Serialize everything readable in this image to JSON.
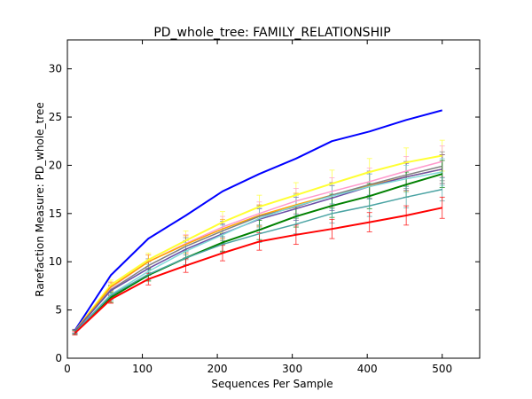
{
  "chart_data": {
    "type": "line",
    "title": "PD_whole_tree: FAMILY_RELATIONSHIP",
    "xlabel": "Sequences Per Sample",
    "ylabel": "Rarefaction Measure: PD_whole_tree",
    "xlim": [
      0,
      550
    ],
    "ylim": [
      0,
      33
    ],
    "xticks": [
      "0",
      "100",
      "200",
      "300",
      "400",
      "500"
    ],
    "yticks": [
      "0",
      "5",
      "10",
      "15",
      "20",
      "25",
      "30"
    ],
    "grid": false,
    "legend": "none",
    "x": [
      10,
      58,
      108,
      158,
      207,
      256,
      305,
      353,
      403,
      452,
      500
    ],
    "series": [
      {
        "color": "#0000ff",
        "values": [
          2.9,
          8.6,
          12.4,
          14.8,
          17.3,
          19.1,
          20.7,
          22.5,
          23.5,
          24.7,
          25.7
        ],
        "errors": null
      },
      {
        "color": "#ffff33",
        "values": [
          2.8,
          7.6,
          10.2,
          12.2,
          14.1,
          15.7,
          16.9,
          18.1,
          19.3,
          20.3,
          21.0
        ],
        "errors": [
          0.2,
          0.5,
          0.7,
          1.0,
          1.1,
          1.2,
          1.3,
          1.4,
          1.4,
          1.5,
          1.6
        ]
      },
      {
        "color": "#ff99cc",
        "values": [
          2.8,
          7.3,
          10.0,
          11.9,
          13.6,
          15.0,
          16.3,
          17.3,
          18.3,
          19.4,
          20.4
        ],
        "errors": [
          0.2,
          0.5,
          0.7,
          0.9,
          1.1,
          1.2,
          1.3,
          1.4,
          1.4,
          1.5,
          1.6
        ]
      },
      {
        "color": "#ffa500",
        "values": [
          2.8,
          7.4,
          10.0,
          11.8,
          13.4,
          14.8,
          15.9,
          16.9,
          17.9,
          18.8,
          19.6
        ],
        "errors": [
          0.2,
          0.5,
          0.7,
          0.9,
          1.0,
          1.1,
          1.2,
          1.3,
          1.4,
          1.5,
          1.5
        ]
      },
      {
        "color": "#808080",
        "values": [
          2.8,
          7.1,
          9.6,
          11.6,
          13.2,
          14.7,
          15.7,
          16.9,
          18.0,
          19.0,
          19.9
        ],
        "errors": [
          0.2,
          0.5,
          0.7,
          0.9,
          1.0,
          1.1,
          1.2,
          1.3,
          1.4,
          1.4,
          1.5
        ]
      },
      {
        "color": "#6b4fa6",
        "values": [
          2.8,
          7.0,
          9.3,
          11.3,
          12.9,
          14.4,
          15.5,
          16.6,
          17.8,
          18.8,
          19.6
        ],
        "errors": [
          0.2,
          0.5,
          0.7,
          0.9,
          1.0,
          1.1,
          1.2,
          1.3,
          1.3,
          1.4,
          1.5
        ]
      },
      {
        "color": "#7fd9d9",
        "values": [
          2.7,
          6.6,
          9.0,
          11.1,
          12.8,
          14.5,
          15.8,
          16.8,
          17.8,
          18.6,
          19.3
        ],
        "errors": [
          0.2,
          0.5,
          0.7,
          0.9,
          1.0,
          1.1,
          1.2,
          1.3,
          1.3,
          1.4,
          1.4
        ]
      },
      {
        "color": "#008000",
        "values": [
          2.7,
          6.3,
          8.6,
          10.4,
          12.0,
          13.3,
          14.7,
          15.8,
          16.8,
          18.0,
          19.1
        ],
        "errors": [
          0.2,
          0.5,
          0.6,
          0.8,
          0.9,
          1.0,
          1.1,
          1.2,
          1.3,
          1.3,
          1.4
        ]
      },
      {
        "color": "#4aa3a3",
        "values": [
          2.7,
          6.5,
          8.7,
          10.4,
          11.8,
          12.9,
          13.9,
          15.0,
          15.8,
          16.7,
          17.5
        ],
        "errors": [
          0.2,
          0.5,
          0.6,
          0.7,
          0.8,
          0.9,
          1.0,
          1.0,
          1.1,
          1.1,
          1.2
        ]
      },
      {
        "color": "#ff0000",
        "values": [
          2.6,
          6.1,
          8.2,
          9.6,
          10.9,
          12.1,
          12.8,
          13.4,
          14.1,
          14.8,
          15.6
        ],
        "errors": [
          0.2,
          0.4,
          0.6,
          0.7,
          0.8,
          0.9,
          1.0,
          1.0,
          1.0,
          1.0,
          1.1
        ]
      }
    ]
  }
}
